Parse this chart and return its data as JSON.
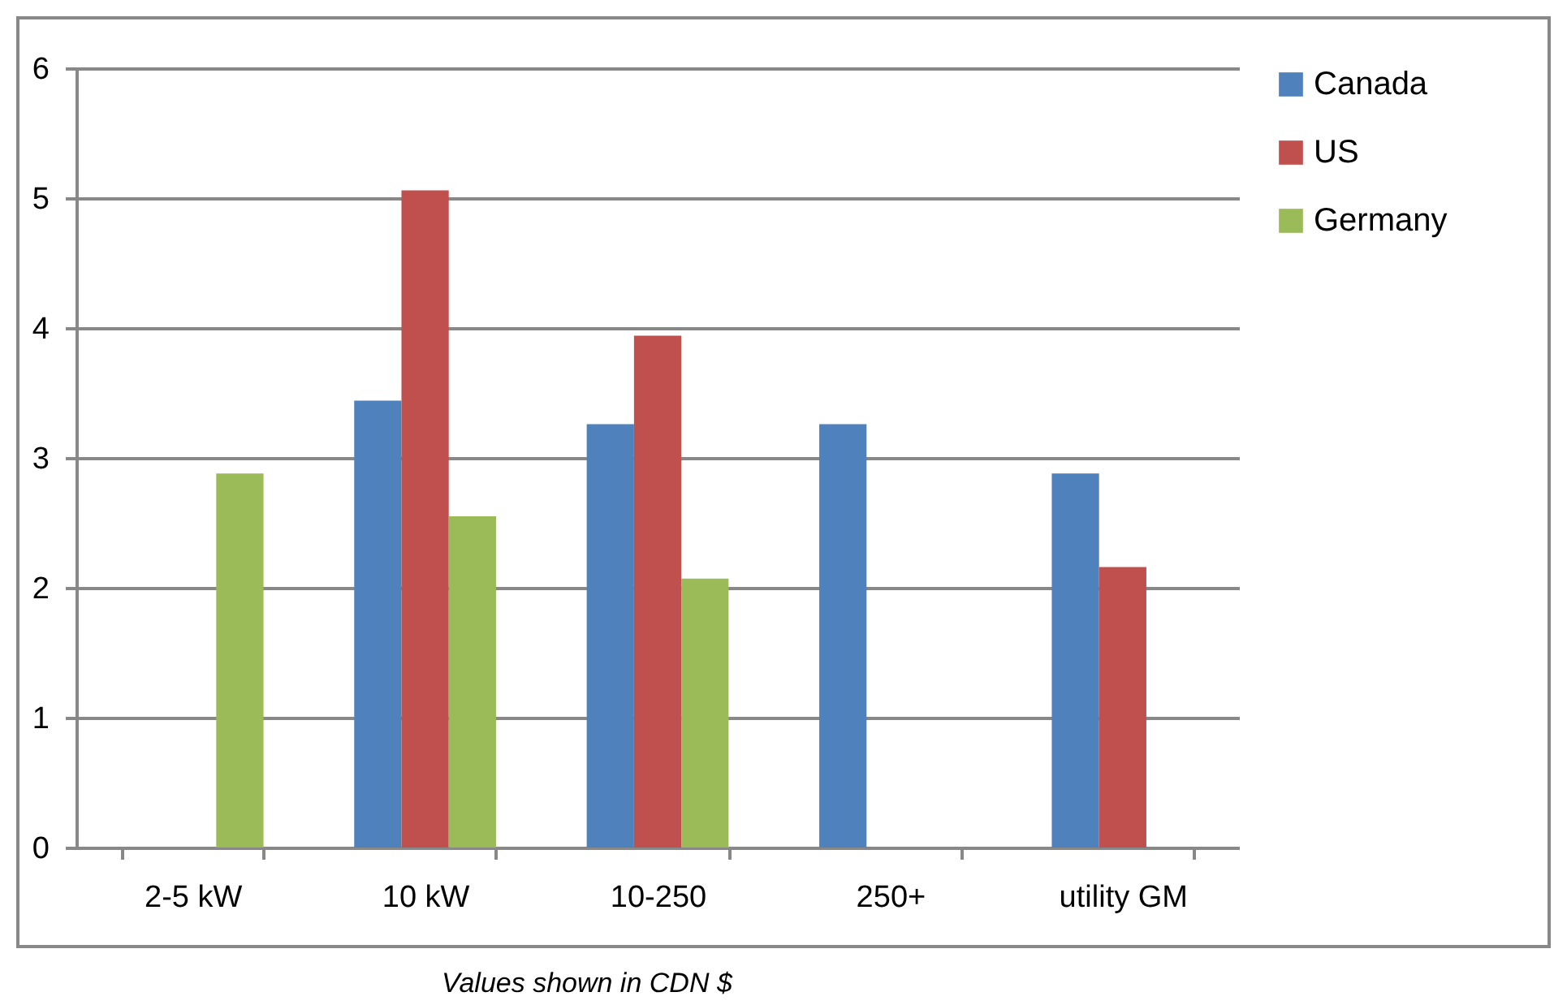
{
  "chart_data": {
    "type": "bar",
    "categories": [
      "2-5 kW",
      "10 kW",
      "10-250",
      "250+",
      "utility GM"
    ],
    "series": [
      {
        "name": "Canada",
        "color": "#4f81bd",
        "values": [
          null,
          3.44,
          3.26,
          3.26,
          2.88
        ]
      },
      {
        "name": "US",
        "color": "#c0504d",
        "values": [
          null,
          5.06,
          3.94,
          null,
          2.16
        ]
      },
      {
        "name": "Germany",
        "color": "#9bbb59",
        "values": [
          2.88,
          2.55,
          2.07,
          null,
          null
        ]
      }
    ],
    "ylim": [
      0,
      6
    ],
    "yticks": [
      0,
      1,
      2,
      3,
      4,
      5,
      6
    ],
    "grid": "y",
    "legend": "right",
    "annotations": [
      "Values shown in CDN $"
    ]
  }
}
